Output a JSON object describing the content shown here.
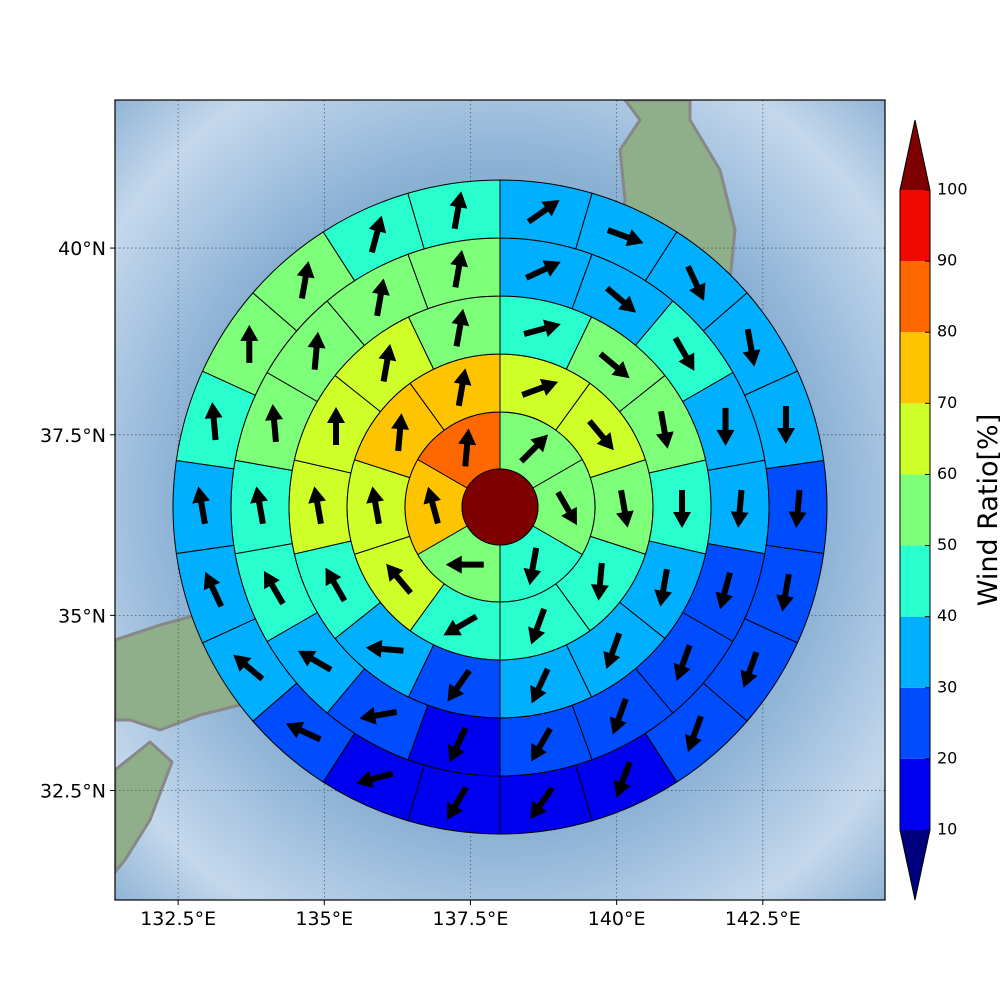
{
  "chart_data": {
    "type": "polar-sector",
    "projection": "mercator",
    "xlim": [
      131.42,
      144.59
    ],
    "xticks": [
      {
        "value": 132.5,
        "label": "132.5°E"
      },
      {
        "value": 135,
        "label": "135°E"
      },
      {
        "value": 137.5,
        "label": "137.5°E"
      },
      {
        "value": 140,
        "label": "140°E"
      },
      {
        "value": 142.5,
        "label": "142.5°E"
      }
    ],
    "ylim": [
      30.9,
      41.92
    ],
    "yticks": [
      {
        "value": 32.5,
        "label": "32.5°N"
      },
      {
        "value": 35,
        "label": "35°N"
      },
      {
        "value": 37.5,
        "label": "37.5°N"
      },
      {
        "value": 40,
        "label": "40°N"
      }
    ],
    "grid": true,
    "center_value": 105,
    "rings": [
      {
        "values": [
          55,
          55,
          45,
          55,
          75,
          85
        ],
        "directions": [
          45,
          150,
          190,
          270,
          345,
          5
        ]
      },
      {
        "values": [
          65,
          65,
          55,
          45,
          45,
          45,
          65,
          65,
          75,
          75
        ],
        "directions": [
          70,
          140,
          170,
          185,
          200,
          240,
          320,
          350,
          5,
          10
        ]
      },
      {
        "values": [
          45,
          55,
          55,
          45,
          35,
          35,
          35,
          25,
          35,
          45,
          65,
          65,
          65,
          55
        ],
        "directions": [
          75,
          130,
          170,
          180,
          190,
          200,
          205,
          215,
          275,
          330,
          350,
          0,
          10,
          10
        ]
      },
      {
        "values": [
          35,
          35,
          45,
          35,
          35,
          25,
          25,
          25,
          25,
          15,
          25,
          35,
          45,
          45,
          55,
          55,
          55,
          55
        ],
        "directions": [
          65,
          130,
          150,
          180,
          185,
          195,
          200,
          200,
          210,
          205,
          260,
          300,
          330,
          350,
          355,
          5,
          10,
          10
        ]
      },
      {
        "values": [
          35,
          35,
          35,
          35,
          35,
          25,
          25,
          25,
          25,
          15,
          15,
          15,
          15,
          25,
          35,
          35,
          35,
          45,
          55,
          55,
          45,
          45
        ],
        "directions": [
          55,
          110,
          155,
          170,
          180,
          185,
          190,
          200,
          200,
          200,
          215,
          210,
          255,
          295,
          310,
          335,
          350,
          355,
          0,
          10,
          15,
          10
        ]
      }
    ],
    "colorbar": {
      "label": "Wind Ratio[%]",
      "levels": [
        10,
        20,
        30,
        40,
        50,
        60,
        70,
        80,
        90,
        100
      ],
      "colors": [
        "#0000f1",
        "#004cff",
        "#00b0ff",
        "#29ffce",
        "#7dff7a",
        "#ceff29",
        "#ffc400",
        "#ff6800",
        "#f10800"
      ],
      "under_color": "#00007f",
      "over_color": "#7f0000",
      "extend": "both"
    }
  }
}
